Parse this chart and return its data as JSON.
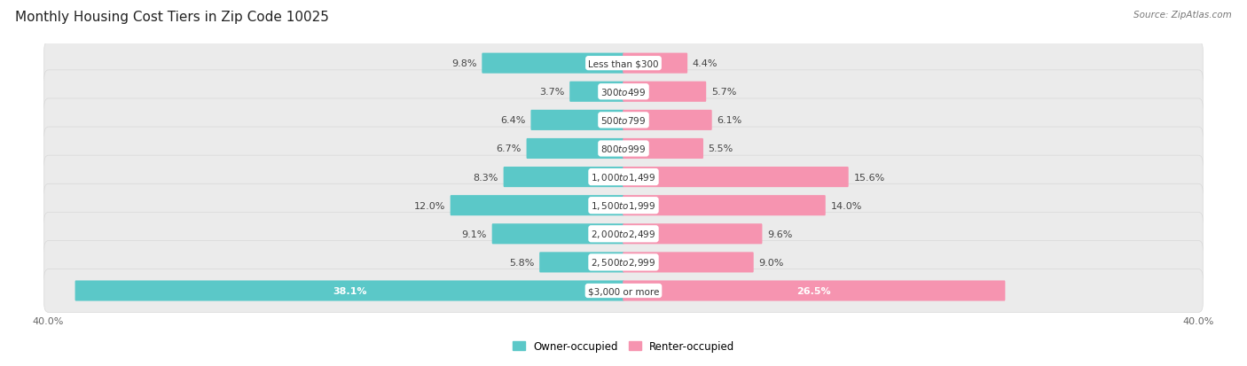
{
  "title": "Monthly Housing Cost Tiers in Zip Code 10025",
  "source": "Source: ZipAtlas.com",
  "categories": [
    "Less than $300",
    "$300 to $499",
    "$500 to $799",
    "$800 to $999",
    "$1,000 to $1,499",
    "$1,500 to $1,999",
    "$2,000 to $2,499",
    "$2,500 to $2,999",
    "$3,000 or more"
  ],
  "owner_values": [
    9.8,
    3.7,
    6.4,
    6.7,
    8.3,
    12.0,
    9.1,
    5.8,
    38.1
  ],
  "renter_values": [
    4.4,
    5.7,
    6.1,
    5.5,
    15.6,
    14.0,
    9.6,
    9.0,
    26.5
  ],
  "owner_color": "#5BC8C8",
  "renter_color": "#F694B0",
  "axis_max": 40.0,
  "row_bg_color": "#ebebeb",
  "background_color": "#ffffff",
  "title_fontsize": 11,
  "label_fontsize": 8,
  "category_fontsize": 7.5,
  "legend_fontsize": 8.5,
  "source_fontsize": 7.5
}
